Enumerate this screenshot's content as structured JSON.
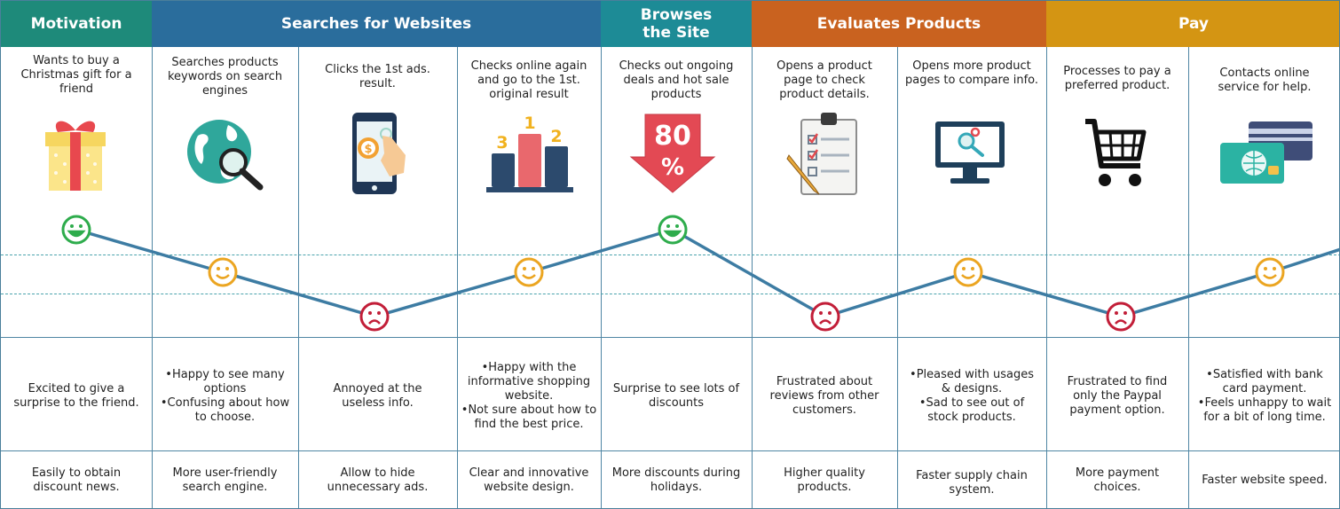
{
  "colors": {
    "motivation": "#1e8a7a",
    "searches": "#2a6d9c",
    "browses": "#1d8b96",
    "evaluates": "#c9621f",
    "pay": "#d49513",
    "curve": "#3d7ca3",
    "happy": "#2eac4c",
    "neutral": "#eba521",
    "sad": "#c21e38"
  },
  "stages": [
    {
      "label": "Motivation"
    },
    {
      "label": "Searches for Websites"
    },
    {
      "label": "Browses the Site"
    },
    {
      "label": "Evaluates Products"
    },
    {
      "label": "Pay"
    }
  ],
  "steps": [
    {
      "action": "Wants to buy a Christmas gift for a friend",
      "icon": "gift-icon",
      "mood": "happy",
      "emotions": [
        "Excited to give a surprise to the friend."
      ],
      "improvement": "Easily to obtain discount news."
    },
    {
      "action": "Searches products keywords on search engines",
      "icon": "globe-search-icon",
      "mood": "neutral",
      "emotions": [
        "Happy to see many options",
        "Confusing about how to choose."
      ],
      "improvement": "More user-friendly search engine."
    },
    {
      "action": "Clicks the 1st ads. result.",
      "icon": "phone-tap-icon",
      "mood": "sad",
      "emotions": [
        "Annoyed at the useless info."
      ],
      "improvement": "Allow to hide unnecessary ads."
    },
    {
      "action": "Checks online again and go to the 1st. original result",
      "icon": "podium-icon",
      "mood": "neutral",
      "emotions": [
        "Happy with the informative shopping website.",
        "Not sure about how to find the best price."
      ],
      "improvement": "Clear and innovative website design."
    },
    {
      "action": "Checks out ongoing deals and hot sale products",
      "icon": "discount-arrow-icon",
      "mood": "happy",
      "emotions": [
        "Surprise to see lots of discounts"
      ],
      "improvement": "More discounts during holidays."
    },
    {
      "action": "Opens a product page to check product details.",
      "icon": "checklist-icon",
      "mood": "sad",
      "emotions": [
        "Frustrated about reviews from other customers."
      ],
      "improvement": "Higher quality products."
    },
    {
      "action": "Opens more product pages to compare info.",
      "icon": "monitor-search-icon",
      "mood": "neutral",
      "emotions": [
        "Pleased with usages & designs.",
        "Sad to see out of stock products."
      ],
      "improvement": "Faster supply chain system."
    },
    {
      "action": "Processes to pay a preferred product.",
      "icon": "shopping-cart-icon",
      "mood": "sad",
      "emotions": [
        "Frustrated to find only the Paypal payment option."
      ],
      "improvement": "More payment choices."
    },
    {
      "action": "Contacts online service for help.",
      "icon": "credit-cards-icon",
      "mood": "neutral",
      "emotions": [
        "Satisfied with bank card payment.",
        "Feels unhappy to wait for a bit of long time."
      ],
      "improvement": "Faster website speed."
    }
  ],
  "badges": {
    "podium": [
      "3",
      "1",
      "2"
    ],
    "discount": [
      "80",
      "%"
    ]
  }
}
